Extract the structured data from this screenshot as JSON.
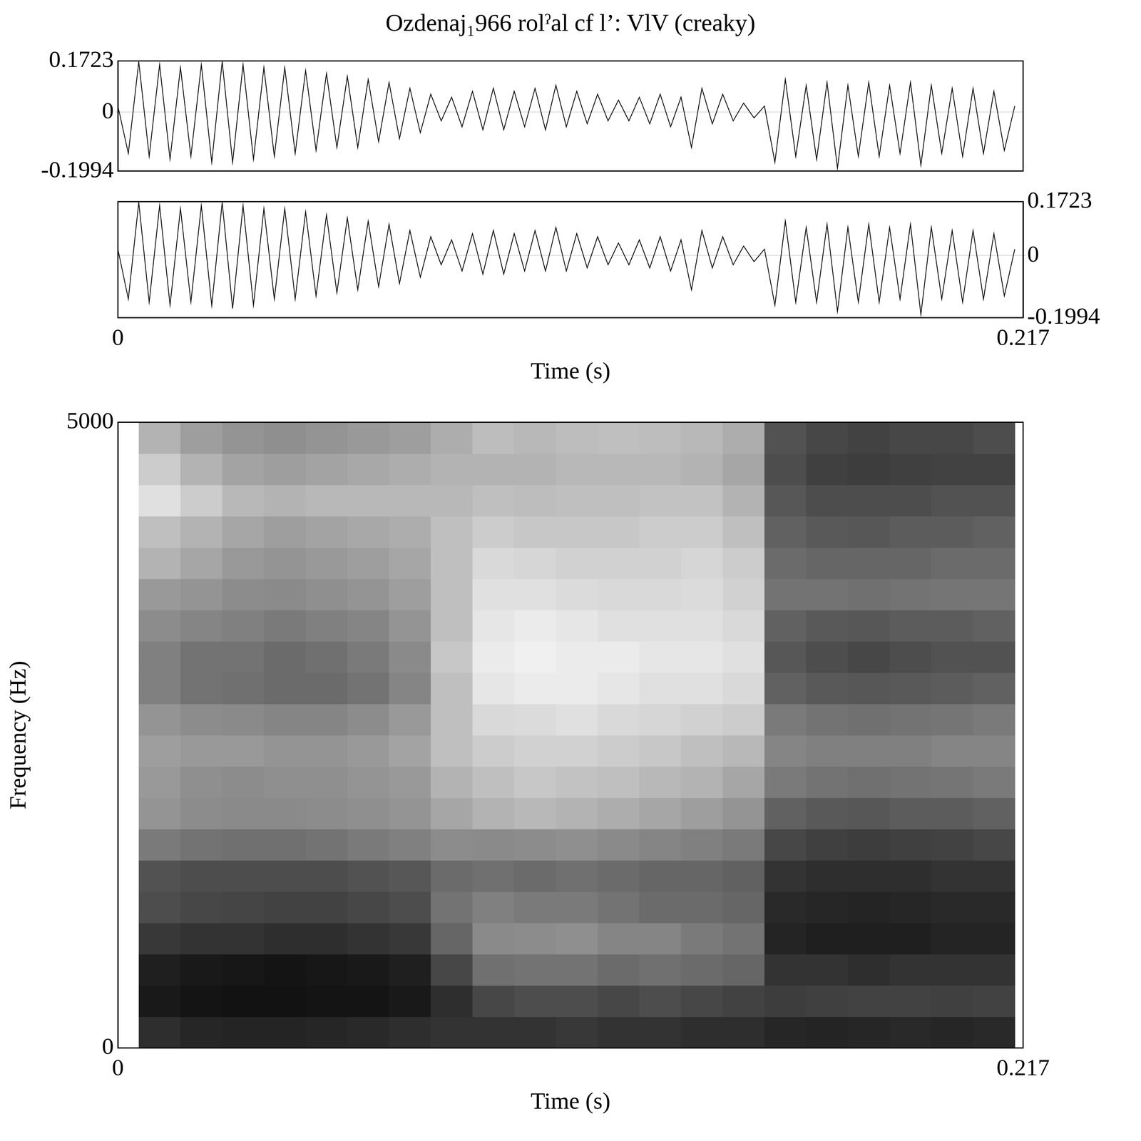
{
  "chart_data": [
    {
      "type": "line",
      "title": "Ozdenaj₁966 rolˀal cf l’: VlV (creaky)",
      "x_label": "Time (s)",
      "x": [
        0,
        0.0025,
        0.005,
        0.0075,
        0.01,
        0.0125,
        0.015,
        0.0175,
        0.02,
        0.0225,
        0.025,
        0.0275,
        0.03,
        0.0325,
        0.035,
        0.0375,
        0.04,
        0.0425,
        0.045,
        0.0475,
        0.05,
        0.0525,
        0.055,
        0.0575,
        0.06,
        0.0625,
        0.065,
        0.0675,
        0.07,
        0.0725,
        0.075,
        0.0775,
        0.08,
        0.0825,
        0.085,
        0.0875,
        0.09,
        0.0925,
        0.095,
        0.0975,
        0.1,
        0.1025,
        0.105,
        0.1075,
        0.11,
        0.1125,
        0.115,
        0.1175,
        0.12,
        0.1225,
        0.125,
        0.1275,
        0.13,
        0.1325,
        0.135,
        0.1375,
        0.14,
        0.1425,
        0.145,
        0.1475,
        0.15,
        0.1525,
        0.155,
        0.1575,
        0.16,
        0.1625,
        0.165,
        0.1675,
        0.17,
        0.1725,
        0.175,
        0.1775,
        0.18,
        0.1825,
        0.185,
        0.1875,
        0.19,
        0.1925,
        0.195,
        0.1975,
        0.2,
        0.2025,
        0.205,
        0.2075,
        0.21,
        0.2125,
        0.215
      ],
      "series": [
        {
          "color": "#000000",
          "values": [
            0.02,
            -0.14,
            0.17,
            -0.15,
            0.16,
            -0.16,
            0.15,
            -0.15,
            0.16,
            -0.17,
            0.17,
            -0.17,
            0.16,
            -0.16,
            0.15,
            -0.15,
            0.15,
            -0.14,
            0.14,
            -0.13,
            0.13,
            -0.12,
            0.12,
            -0.12,
            0.11,
            -0.1,
            0.1,
            -0.09,
            0.08,
            -0.07,
            0.06,
            -0.03,
            0.05,
            -0.05,
            0.07,
            -0.06,
            0.08,
            -0.06,
            0.07,
            -0.05,
            0.08,
            -0.06,
            0.09,
            -0.05,
            0.07,
            -0.04,
            0.06,
            -0.03,
            0.04,
            -0.03,
            0.05,
            -0.04,
            0.06,
            -0.05,
            0.05,
            -0.12,
            0.08,
            -0.04,
            0.06,
            -0.03,
            0.03,
            -0.02,
            0.02,
            -0.17,
            0.11,
            -0.15,
            0.09,
            -0.16,
            0.1,
            -0.19,
            0.09,
            -0.15,
            0.1,
            -0.15,
            0.09,
            -0.14,
            0.1,
            -0.18,
            0.09,
            -0.14,
            0.08,
            -0.15,
            0.08,
            -0.14,
            0.07,
            -0.13,
            0.02
          ]
        },
        {
          "color": "#000000",
          "values": [
            0.02,
            -0.14,
            0.17,
            -0.15,
            0.16,
            -0.16,
            0.15,
            -0.15,
            0.16,
            -0.16,
            0.17,
            -0.17,
            0.16,
            -0.16,
            0.15,
            -0.14,
            0.15,
            -0.14,
            0.14,
            -0.13,
            0.13,
            -0.12,
            0.12,
            -0.11,
            0.11,
            -0.1,
            0.1,
            -0.09,
            0.08,
            -0.07,
            0.06,
            -0.03,
            0.05,
            -0.05,
            0.07,
            -0.06,
            0.08,
            -0.06,
            0.07,
            -0.05,
            0.08,
            -0.05,
            0.09,
            -0.05,
            0.07,
            -0.04,
            0.06,
            -0.03,
            0.04,
            -0.03,
            0.05,
            -0.04,
            0.06,
            -0.05,
            0.05,
            -0.11,
            0.08,
            -0.04,
            0.06,
            -0.03,
            0.03,
            -0.02,
            0.02,
            -0.16,
            0.11,
            -0.15,
            0.09,
            -0.15,
            0.1,
            -0.18,
            0.09,
            -0.15,
            0.1,
            -0.15,
            0.09,
            -0.14,
            0.1,
            -0.19,
            0.09,
            -0.14,
            0.08,
            -0.15,
            0.08,
            -0.14,
            0.07,
            -0.13,
            0.02
          ]
        }
      ],
      "xlim": [
        0,
        0.217
      ],
      "xticks": [
        0,
        0.217
      ],
      "ylim": [
        -0.1994,
        0.1723
      ],
      "yticks": [
        -0.1994,
        0,
        0.1723
      ]
    },
    {
      "type": "heatmap",
      "x_label": "Time (s)",
      "y_label": "Frequency (Hz)",
      "x": [
        0.01,
        0.02,
        0.03,
        0.04,
        0.05,
        0.06,
        0.07,
        0.08,
        0.09,
        0.1,
        0.11,
        0.12,
        0.13,
        0.14,
        0.15,
        0.16,
        0.17,
        0.18,
        0.19,
        0.2,
        0.21
      ],
      "y": [
        125,
        375,
        625,
        875,
        1125,
        1375,
        1625,
        1875,
        2125,
        2375,
        2625,
        2875,
        3125,
        3375,
        3625,
        3875,
        4125,
        4375,
        4625,
        4875
      ],
      "cells": [
        [
          82,
          90,
          88,
          78,
          70,
          68,
          52,
          42,
          40,
          38,
          42,
          50,
          50,
          45,
          40,
          30,
          25,
          12,
          20,
          30
        ],
        [
          85,
          92,
          90,
          80,
          72,
          70,
          55,
          45,
          44,
          40,
          45,
          55,
          55,
          48,
          42,
          35,
          30,
          20,
          30,
          38
        ],
        [
          86,
          93,
          91,
          80,
          73,
          70,
          56,
          46,
          45,
          40,
          46,
          56,
          55,
          50,
          45,
          40,
          35,
          28,
          36,
          42
        ],
        [
          86,
          93,
          92,
          82,
          74,
          70,
          56,
          46,
          44,
          42,
          48,
          58,
          58,
          52,
          46,
          42,
          38,
          30,
          38,
          44
        ],
        [
          85,
          92,
          91,
          82,
          74,
          70,
          55,
          45,
          44,
          42,
          48,
          58,
          56,
          50,
          44,
          40,
          36,
          28,
          36,
          42
        ],
        [
          84,
          92,
          90,
          80,
          72,
          68,
          52,
          44,
          42,
          40,
          45,
          55,
          52,
          48,
          42,
          38,
          34,
          28,
          34,
          40
        ],
        [
          82,
          90,
          88,
          78,
          70,
          66,
          50,
          42,
          40,
          36,
          40,
          48,
          46,
          42,
          38,
          35,
          32,
          28,
          32,
          38
        ],
        [
          80,
          82,
          72,
          60,
          55,
          58,
          45,
          35,
          30,
          25,
          25,
          25,
          22,
          25,
          25,
          25,
          25,
          28,
          30,
          32
        ],
        [
          80,
          72,
          56,
          46,
          50,
          56,
          46,
          30,
          25,
          20,
          15,
          10,
          8,
          10,
          12,
          15,
          20,
          25,
          30,
          26
        ],
        [
          80,
          70,
          55,
          45,
          52,
          58,
          45,
          28,
          22,
          18,
          14,
          8,
          6,
          8,
          12,
          16,
          22,
          26,
          30,
          28
        ],
        [
          78,
          70,
          55,
          44,
          52,
          56,
          44,
          30,
          24,
          18,
          12,
          8,
          8,
          10,
          14,
          18,
          22,
          25,
          28,
          26
        ],
        [
          80,
          72,
          58,
          48,
          55,
          58,
          46,
          32,
          25,
          20,
          15,
          10,
          8,
          12,
          15,
          18,
          22,
          25,
          28,
          25
        ],
        [
          80,
          70,
          56,
          48,
          58,
          60,
          48,
          35,
          28,
          22,
          16,
          12,
          10,
          12,
          15,
          18,
          20,
          24,
          28,
          26
        ],
        [
          82,
          72,
          58,
          52,
          58,
          60,
          50,
          38,
          30,
          25,
          18,
          12,
          10,
          12,
          14,
          16,
          20,
          24,
          30,
          28
        ],
        [
          82,
          74,
          60,
          55,
          60,
          62,
          52,
          42,
          35,
          28,
          20,
          15,
          12,
          15,
          18,
          20,
          25,
          30,
          35,
          32
        ],
        [
          85,
          76,
          80,
          86,
          84,
          80,
          72,
          62,
          52,
          48,
          52,
          62,
          66,
          62,
          55,
          58,
          62,
          66,
          70,
          68
        ],
        [
          86,
          75,
          80,
          88,
          85,
          82,
          75,
          65,
          55,
          50,
          55,
          65,
          70,
          65,
          55,
          60,
          65,
          70,
          75,
          72
        ],
        [
          85,
          74,
          82,
          88,
          86,
          82,
          76,
          66,
          56,
          50,
          56,
          66,
          72,
          66,
          56,
          60,
          66,
          70,
          76,
          74
        ],
        [
          84,
          74,
          80,
          88,
          85,
          82,
          75,
          64,
          55,
          50,
          55,
          65,
          70,
          64,
          55,
          60,
          64,
          70,
          75,
          72
        ],
        [
          85,
          75,
          80,
          86,
          84,
          80,
          74,
          64,
          54,
          48,
          54,
          64,
          68,
          64,
          54,
          58,
          64,
          68,
          74,
          72
        ],
        [
          84,
          74,
          80,
          86,
          84,
          80,
          72,
          62,
          52,
          48,
          52,
          62,
          68,
          62,
          54,
          58,
          62,
          68,
          74,
          70
        ]
      ],
      "xlim": [
        0,
        0.217
      ],
      "xticks": [
        0,
        0.217
      ],
      "ylim": [
        0,
        5000
      ],
      "yticks": [
        0,
        5000
      ]
    }
  ]
}
